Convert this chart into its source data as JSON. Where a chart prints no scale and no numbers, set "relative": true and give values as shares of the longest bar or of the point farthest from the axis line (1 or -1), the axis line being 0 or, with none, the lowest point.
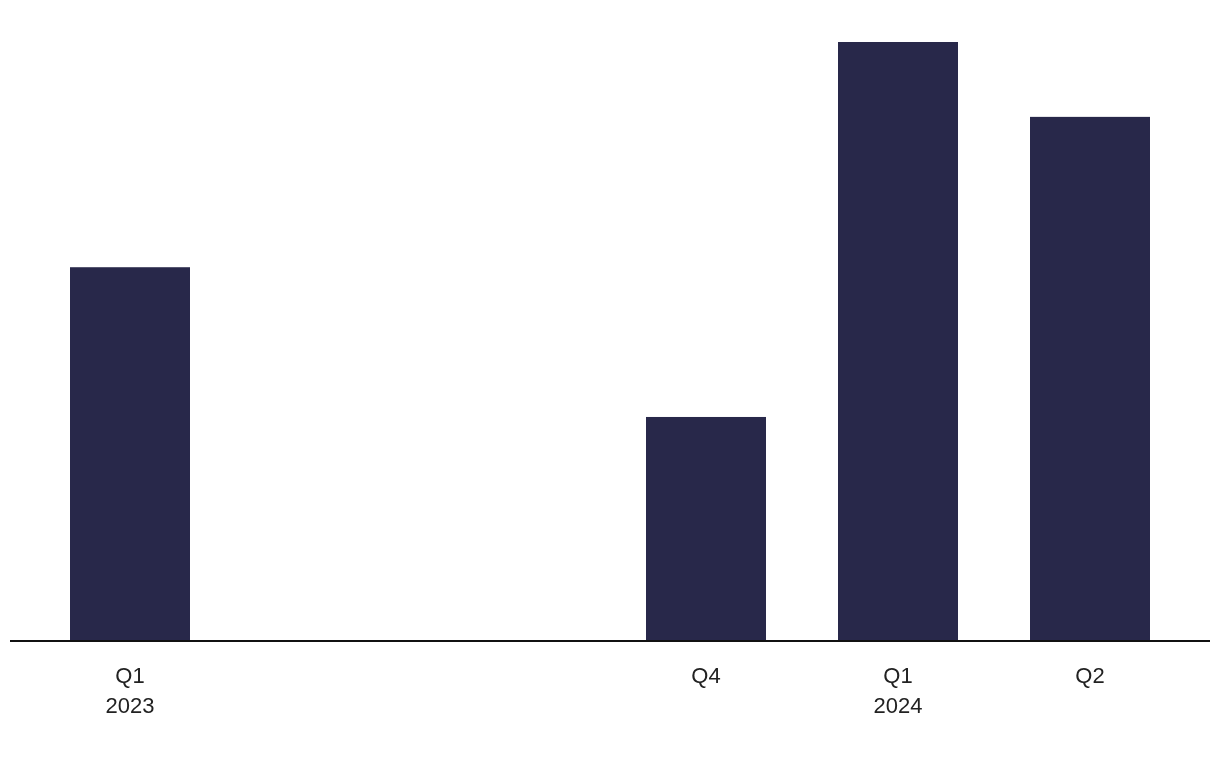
{
  "chart_data": {
    "type": "bar",
    "relative": true,
    "categories": [
      "Q1\n2023",
      null,
      null,
      "Q4",
      "Q1\n2024",
      "Q2"
    ],
    "values": [
      0.624,
      null,
      null,
      0.374,
      1,
      0.875
    ],
    "color": "#28284a"
  }
}
